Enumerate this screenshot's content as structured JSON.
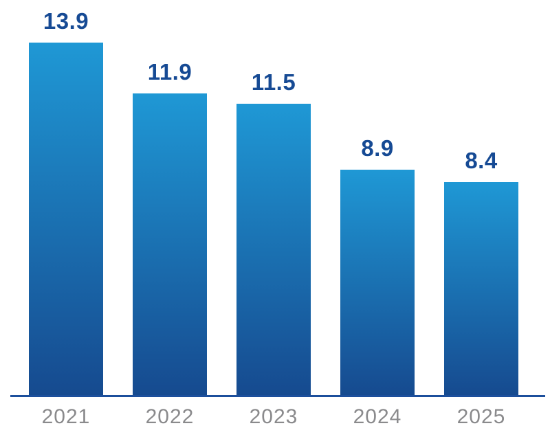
{
  "chart_data": {
    "type": "bar",
    "categories": [
      "2021",
      "2022",
      "2023",
      "2024",
      "2025"
    ],
    "values": [
      13.9,
      11.9,
      11.5,
      8.9,
      8.4
    ],
    "title": "",
    "xlabel": "",
    "ylabel": "",
    "ylim": [
      0,
      14.5
    ],
    "grid": false,
    "legend": "none",
    "value_labels_shown": true,
    "colors": {
      "bar_gradient_top": "#1f98d5",
      "bar_gradient_bottom": "#164a8f",
      "value_label": "#164a94",
      "category_label": "#8a8a8c",
      "axis_line": "#1c4f9c",
      "background": "#ffffff"
    }
  }
}
